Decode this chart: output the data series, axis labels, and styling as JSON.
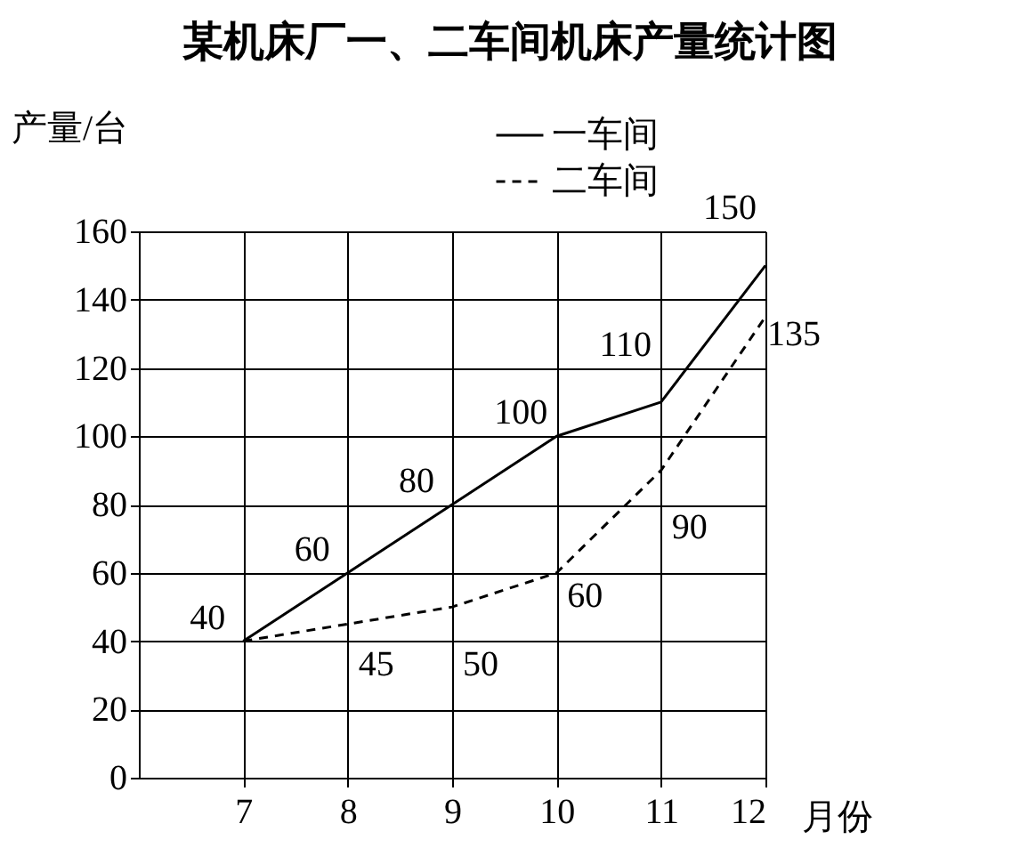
{
  "chart_data": {
    "type": "line",
    "title": "某机床厂一、二车间机床产量统计图",
    "xlabel": "月份",
    "ylabel": "产量/台",
    "x": [
      7,
      8,
      9,
      10,
      11,
      12
    ],
    "xlim": [
      6,
      12
    ],
    "xticks": [
      {
        "value": 7,
        "label": "7"
      },
      {
        "value": 8,
        "label": "8"
      },
      {
        "value": 9,
        "label": "9"
      },
      {
        "value": 10,
        "label": "10"
      },
      {
        "value": 11,
        "label": "11"
      },
      {
        "value": 12,
        "label": "12"
      }
    ],
    "ylim": [
      0,
      160
    ],
    "yticks": [
      0,
      20,
      40,
      60,
      80,
      100,
      120,
      140,
      160
    ],
    "grid": true,
    "legend": "top right",
    "marker": "none",
    "series": [
      {
        "name": "一车间",
        "color": "#000000",
        "line_style": "solid",
        "values": [
          40,
          60,
          80,
          100,
          110,
          150
        ],
        "value_labels": [
          "40",
          "60",
          "80",
          "100",
          "110",
          "150"
        ]
      },
      {
        "name": "二车间",
        "color": "#000000",
        "line_style": "dashed",
        "values": [
          40,
          45,
          50,
          60,
          90,
          135
        ],
        "value_labels": [
          null,
          "45",
          "50",
          "60",
          "90",
          "135"
        ]
      }
    ]
  }
}
